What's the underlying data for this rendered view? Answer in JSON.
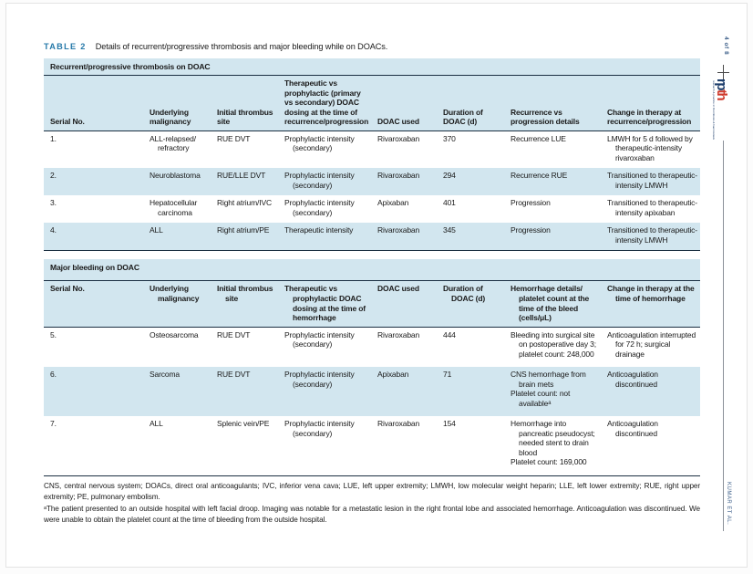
{
  "caption": {
    "label": "TABLE 2",
    "text": "Details of recurrent/progressive thrombosis and major bleeding while on DOACs."
  },
  "margin": {
    "page_marker": "4 of 8",
    "running_footer": "KUMAR ET AL.",
    "logo": {
      "part1": "rp",
      "part2": "th",
      "tagline": "research & practice in thrombosis & haemostasis"
    }
  },
  "colors": {
    "band_blue": "#d2e6ef",
    "rule_dark": "#1b2f42",
    "caption_blue": "#2679a9",
    "logo_navy": "#1d3d6b",
    "logo_red": "#cf3a2c"
  },
  "sections": [
    {
      "title": "Recurrent/progressive thrombosis on DOAC",
      "columns": [
        "Serial No.",
        "Underlying malignancy",
        "Initial thrombus site",
        "Therapeutic vs prophylactic (primary vs secondary) DOAC dosing at the time of recurrence/progression",
        "DOAC used",
        "Duration of DOAC (d)",
        "Recurrence vs progression details",
        "Change in therapy at recurrence/progression"
      ],
      "rows": [
        [
          "1.",
          "ALL-relapsed/ refractory",
          "RUE DVT",
          "Prophylactic intensity (secondary)",
          "Rivaroxaban",
          "370",
          "Recurrence LUE",
          "LMWH for 5 d followed by therapeutic-intensity rivaroxaban"
        ],
        [
          "2.",
          "Neuroblastoma",
          "RUE/LLE DVT",
          "Prophylactic intensity (secondary)",
          "Rivaroxaban",
          "294",
          "Recurrence RUE",
          "Transitioned to therapeutic-intensity LMWH"
        ],
        [
          "3.",
          "Hepatocellular carcinoma",
          "Right atrium/IVC",
          "Prophylactic intensity (secondary)",
          "Apixaban",
          "401",
          "Progression",
          "Transitioned to therapeutic-intensity apixaban"
        ],
        [
          "4.",
          "ALL",
          "Right atrium/PE",
          "Therapeutic intensity",
          "Rivaroxaban",
          "345",
          "Progression",
          "Transitioned to therapeutic-intensity LMWH"
        ]
      ]
    },
    {
      "title": "Major bleeding on DOAC",
      "columns": [
        "Serial No.",
        "Underlying malignancy",
        "Initial thrombus site",
        "Therapeutic vs prophylactic DOAC dosing at the time of hemorrhage",
        "DOAC used",
        "Duration of DOAC (d)",
        "Hemorrhage details/ platelet count at the time of the bleed (cells/μL)",
        "Change in therapy at the time of hemorrhage"
      ],
      "rows": [
        [
          "5.",
          "Osteosarcoma",
          "RUE DVT",
          "Prophylactic intensity (secondary)",
          "Rivaroxaban",
          "444",
          [
            "Bleeding into surgical site on postoperative day 3; platelet count: 248,000"
          ],
          [
            "Anticoagulation interrupted for 72 h; surgical drainage"
          ]
        ],
        [
          "6.",
          "Sarcoma",
          "RUE DVT",
          "Prophylactic intensity (secondary)",
          "Apixaban",
          "71",
          [
            "CNS hemorrhage from brain mets",
            "Platelet count: not availableᵃ"
          ],
          [
            "Anticoagulation discontinued"
          ]
        ],
        [
          "7.",
          "ALL",
          "Splenic vein/PE",
          "Prophylactic intensity (secondary)",
          "Rivaroxaban",
          "154",
          [
            "Hemorrhage into pancreatic pseudocyst; needed stent to drain blood",
            "Platelet count: 169,000"
          ],
          [
            "Anticoagulation discontinued"
          ]
        ]
      ]
    }
  ],
  "footnotes": {
    "abbreviations": "CNS, central nervous system; DOACs, direct oral anticoagulants; IVC, inferior vena cava; LUE, left upper extremity; LMWH, low molecular weight heparin; LLE, left lower extremity; RUE, right upper extremity; PE, pulmonary embolism.",
    "note_a": "ᵃThe patient presented to an outside hospital with left facial droop. Imaging was notable for a metastatic lesion in the right frontal lobe and associated hemorrhage. Anticoagulation was discontinued. We were unable to obtain the platelet count at the time of bleeding from the outside hospital."
  }
}
